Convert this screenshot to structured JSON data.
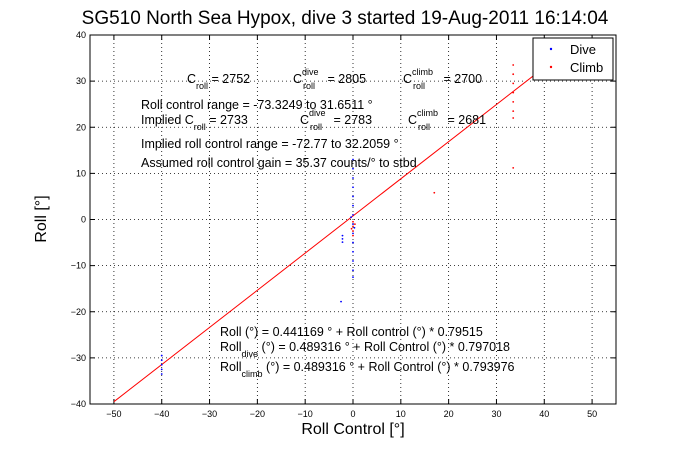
{
  "chart_data": {
    "type": "scatter",
    "title": "SG510 North Sea Hypox, dive 3 started 19-Aug-2011 16:14:04",
    "xlabel": "Roll Control [°]",
    "ylabel": "Roll [°]",
    "xlim": [
      -55,
      55
    ],
    "ylim": [
      -40,
      40
    ],
    "xticks": [
      -50,
      -40,
      -30,
      -20,
      -10,
      0,
      10,
      20,
      30,
      40,
      50
    ],
    "yticks": [
      -40,
      -30,
      -20,
      -10,
      0,
      10,
      20,
      30,
      40
    ],
    "grid": true,
    "legend": {
      "position": "top-right",
      "entries": [
        {
          "label": "Dive",
          "color": "#0000ff",
          "marker": "."
        },
        {
          "label": "Climb",
          "color": "#ff0000",
          "marker": "."
        }
      ]
    },
    "series": [
      {
        "name": "Dive",
        "color": "#0000ff",
        "points": [
          [
            -40,
            -29.5
          ],
          [
            -40,
            -30.5
          ],
          [
            -40,
            -31.5
          ],
          [
            -40,
            -32.5
          ],
          [
            -40,
            -33.5
          ],
          [
            -2.2,
            -3.5
          ],
          [
            -2.2,
            -4.2
          ],
          [
            -2.2,
            -4.9
          ],
          [
            -2.5,
            -17.8
          ],
          [
            0,
            1
          ],
          [
            0,
            3
          ],
          [
            0,
            5
          ],
          [
            0,
            7
          ],
          [
            0,
            9
          ],
          [
            0,
            11
          ],
          [
            0,
            13
          ],
          [
            0,
            -1
          ],
          [
            0,
            -3
          ],
          [
            0,
            -5
          ],
          [
            0,
            -7
          ],
          [
            0,
            -9
          ],
          [
            0,
            -11
          ],
          [
            0,
            -12.5
          ],
          [
            -0.4,
            0.5
          ],
          [
            0.3,
            -1.8
          ]
        ]
      },
      {
        "name": "Climb",
        "color": "#ff0000",
        "points": [
          [
            33.5,
            33.5
          ],
          [
            33.5,
            31.5
          ],
          [
            33.5,
            29.5
          ],
          [
            33.5,
            27.5
          ],
          [
            33.5,
            25.5
          ],
          [
            33.5,
            23.5
          ],
          [
            33.5,
            22
          ],
          [
            33.5,
            11.2
          ],
          [
            17,
            5.8
          ],
          [
            0,
            -0.5
          ],
          [
            0,
            -1.5
          ],
          [
            0,
            -2.5
          ],
          [
            0,
            -3.5
          ],
          [
            0.4,
            -1
          ],
          [
            -0.3,
            -2
          ]
        ]
      },
      {
        "name": "Fit",
        "color": "#ff0000",
        "line": [
          [
            -50,
            -39.5
          ],
          [
            42.5,
            35
          ]
        ]
      }
    ],
    "annotations": {
      "c_roll": "C",
      "c_roll_sub": "roll",
      "c_roll_val": " = 2752",
      "c_dive": "C",
      "c_dive_sup": "dive",
      "c_dive_sub": "roll",
      "c_dive_val": " = 2805",
      "c_climb": "C",
      "c_climb_sup": "climb",
      "c_climb_sub": "roll",
      "c_climb_val": " = 2700",
      "range": "Roll control range = -73.3249 to 31.6511 °",
      "implied_c": "Implied C",
      "implied_c_sub": "roll",
      "implied_c_val": " = 2733",
      "implied_dive": "C",
      "implied_dive_sup": "dive",
      "implied_dive_sub": "roll",
      "implied_dive_val": " = 2783",
      "implied_climb": "C",
      "implied_climb_sup": "climb",
      "implied_climb_sub": "roll",
      "implied_climb_val": " = 2681",
      "implied_range": "Implied roll control range = -72.77 to 32.2059 °",
      "gain": "Assumed roll control gain = 35.37 counts/° to stbd",
      "fit_all": "Roll (°) = 0.441169 ° + Roll control (°) * 0.79515",
      "fit_dive_pre": "Roll",
      "fit_dive_sub": "dive",
      "fit_dive_post": " (°) = 0.489316 ° + Roll Control (°) * 0.797018",
      "fit_climb_pre": "Roll",
      "fit_climb_sub": "climb",
      "fit_climb_post": " (°) = 0.489316 ° + Roll Control (°) * 0.793976"
    }
  }
}
